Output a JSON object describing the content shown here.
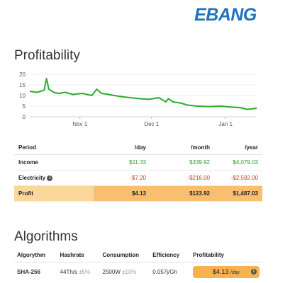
{
  "brand": {
    "logo_text": "EBANG",
    "color": "#1e73be"
  },
  "profitability": {
    "title": "Profitability",
    "chart_data": {
      "type": "line",
      "title": "",
      "xlabel": "",
      "ylabel": "",
      "ylim": [
        0,
        20
      ],
      "y_ticks": [
        "0",
        "5",
        "10",
        "15",
        "20"
      ],
      "x_tick_labels": [
        "Nov 1",
        "Dec 1",
        "Jan 1"
      ],
      "x_tick_days": [
        21,
        51,
        82
      ],
      "grid": true,
      "color": "#2eaa2e",
      "series": [
        {
          "x": [
            0,
            3,
            6,
            7,
            8,
            10,
            12,
            15,
            18,
            22,
            26,
            28,
            30,
            33,
            38,
            42,
            46,
            50,
            54,
            57,
            58,
            60,
            63,
            66,
            70,
            75,
            80,
            84,
            88,
            91,
            93,
            95
          ],
          "y": [
            12,
            11.5,
            12.5,
            18,
            13,
            11.5,
            11,
            11.5,
            10.5,
            11,
            10,
            13,
            11,
            10.5,
            9.5,
            9,
            8.5,
            8.2,
            9,
            7,
            8.5,
            7,
            6.5,
            5.5,
            5,
            4.8,
            5,
            4.6,
            4.3,
            3.5,
            3.7,
            4
          ]
        }
      ]
    },
    "table": {
      "headers": [
        "Period",
        "/day",
        "/month",
        "/year"
      ],
      "rows": [
        {
          "label": "Income",
          "day": "$11.33",
          "month": "$339.92",
          "year": "$4,079.03"
        },
        {
          "label": "Electricity",
          "day": "-$7.20",
          "month": "-$216.00",
          "year": "-$2,592.00"
        },
        {
          "label": "Profit",
          "day": "$4.13",
          "month": "$123.92",
          "year": "$1,487.03"
        }
      ]
    }
  },
  "algorithms": {
    "title": "Algorithms",
    "headers": [
      "Algorythm",
      "Hashrate",
      "Consumption",
      "Efficiency",
      "Profitability"
    ],
    "rows": [
      {
        "algo": "SHA-256",
        "hashrate": "44Th/s",
        "hashrate_var": "±5%",
        "consumption": "2500W",
        "consumption_var": "±10%",
        "efficiency": "0.057j/Gh",
        "profit": "$4.13",
        "profit_unit": "/day"
      }
    ]
  }
}
